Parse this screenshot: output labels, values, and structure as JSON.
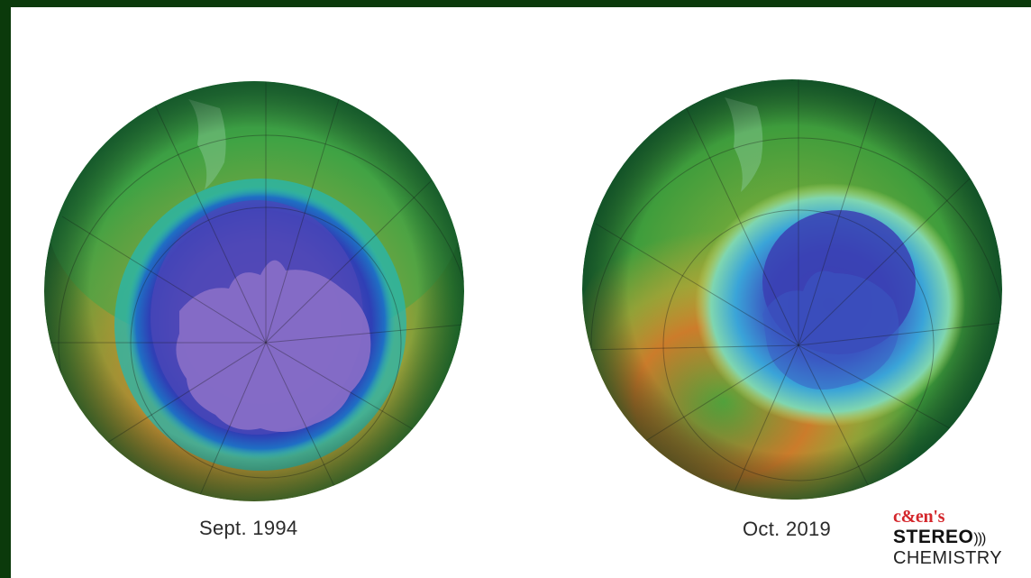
{
  "maps": [
    {
      "caption": "Sept. 1994"
    },
    {
      "caption": "Oct. 2019"
    }
  ],
  "logo": {
    "brand": "c&en's",
    "program": "STEREO",
    "waves": ")))",
    "subtitle": "CHEMISTRY"
  },
  "colors": {
    "border": "#0b3a0b",
    "hole_core": "#7a4fb0",
    "hole_edge": "#2f3fb5",
    "ring_cyan": "#24b6c8",
    "ozone_green": "#2f9a3a",
    "ozone_high": "#c87a2a"
  }
}
